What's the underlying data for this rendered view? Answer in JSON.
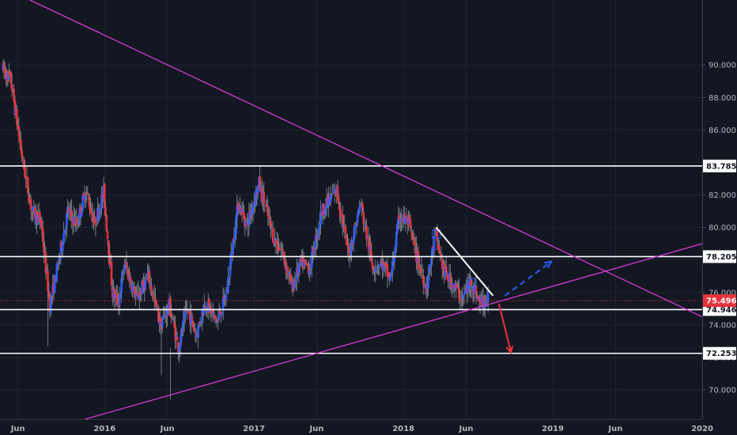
{
  "chart_data": {
    "type": "candlestick",
    "y_ticks": [
      "90.000",
      "88.000",
      "86.000",
      "84.000",
      "82.000",
      "80.000",
      "78.000",
      "76.000",
      "74.000",
      "72.000",
      "70.000"
    ],
    "x_ticks": [
      {
        "label": "Jun",
        "t": 2015.42
      },
      {
        "label": "2016",
        "t": 2016.0
      },
      {
        "label": "Jun",
        "t": 2016.42
      },
      {
        "label": "2017",
        "t": 2017.0
      },
      {
        "label": "Jun",
        "t": 2017.42
      },
      {
        "label": "2018",
        "t": 2018.0
      },
      {
        "label": "Jun",
        "t": 2018.42
      },
      {
        "label": "2019",
        "t": 2019.0
      },
      {
        "label": "Jun",
        "t": 2019.42
      },
      {
        "label": "2020",
        "t": 2020.0
      }
    ],
    "ylim": [
      68.2,
      94.0
    ],
    "xlim": [
      2015.3,
      2020.0
    ],
    "levels": [
      {
        "value": 83.785,
        "label": "83.785",
        "color": "#ffffff"
      },
      {
        "value": 78.205,
        "label": "78.205",
        "color": "#ffffff"
      },
      {
        "value": 74.946,
        "label": "74.946",
        "color": "#ffffff"
      },
      {
        "value": 72.253,
        "label": "72.253",
        "color": "#ffffff"
      }
    ],
    "last_price": {
      "value": 75.496,
      "label": "75.496",
      "color": "#e8323c"
    },
    "trendlines": [
      {
        "color": "#d63bd6",
        "from": {
          "t": 2015.5,
          "y": 94.0
        },
        "to": {
          "t": 2020.0,
          "y": 74.5
        }
      },
      {
        "color": "#d63bd6",
        "from": {
          "t": 2015.87,
          "y": 68.2
        },
        "to": {
          "t": 2020.0,
          "y": 79.0
        }
      },
      {
        "color": "#ffffff",
        "from": {
          "t": 2018.22,
          "y": 80.0
        },
        "to": {
          "t": 2018.6,
          "y": 75.8
        }
      }
    ],
    "arrows": [
      {
        "color": "#e8323c",
        "dashed": false,
        "from": {
          "t": 2018.64,
          "y": 75.3
        },
        "to": {
          "t": 2018.72,
          "y": 72.3
        }
      },
      {
        "color": "#2962ff",
        "dashed": true,
        "from": {
          "t": 2018.68,
          "y": 75.8
        },
        "to": {
          "t": 2018.99,
          "y": 77.9
        }
      }
    ],
    "anchors": [
      {
        "t": 2015.32,
        "y": 89.8
      },
      {
        "t": 2015.38,
        "y": 89.0
      },
      {
        "t": 2015.46,
        "y": 84.0
      },
      {
        "t": 2015.52,
        "y": 81.0
      },
      {
        "t": 2015.58,
        "y": 80.4
      },
      {
        "t": 2015.64,
        "y": 75.2
      },
      {
        "t": 2015.68,
        "y": 77.0
      },
      {
        "t": 2015.76,
        "y": 81.0
      },
      {
        "t": 2015.82,
        "y": 80.2
      },
      {
        "t": 2015.88,
        "y": 82.3
      },
      {
        "t": 2015.94,
        "y": 80.2
      },
      {
        "t": 2016.0,
        "y": 82.2
      },
      {
        "t": 2016.06,
        "y": 76.0
      },
      {
        "t": 2016.1,
        "y": 75.4
      },
      {
        "t": 2016.14,
        "y": 77.8
      },
      {
        "t": 2016.22,
        "y": 75.6
      },
      {
        "t": 2016.3,
        "y": 77.0
      },
      {
        "t": 2016.38,
        "y": 74.0
      },
      {
        "t": 2016.44,
        "y": 75.2
      },
      {
        "t": 2016.5,
        "y": 72.6
      },
      {
        "t": 2016.56,
        "y": 75.0
      },
      {
        "t": 2016.62,
        "y": 73.4
      },
      {
        "t": 2016.68,
        "y": 75.4
      },
      {
        "t": 2016.76,
        "y": 74.2
      },
      {
        "t": 2016.82,
        "y": 75.8
      },
      {
        "t": 2016.9,
        "y": 81.5
      },
      {
        "t": 2016.96,
        "y": 80.2
      },
      {
        "t": 2017.04,
        "y": 82.7
      },
      {
        "t": 2017.14,
        "y": 79.3
      },
      {
        "t": 2017.2,
        "y": 78.4
      },
      {
        "t": 2017.26,
        "y": 76.3
      },
      {
        "t": 2017.32,
        "y": 77.8
      },
      {
        "t": 2017.38,
        "y": 77.5
      },
      {
        "t": 2017.46,
        "y": 81.0
      },
      {
        "t": 2017.56,
        "y": 82.3
      },
      {
        "t": 2017.64,
        "y": 78.3
      },
      {
        "t": 2017.72,
        "y": 81.5
      },
      {
        "t": 2017.8,
        "y": 77.6
      },
      {
        "t": 2017.86,
        "y": 77.8
      },
      {
        "t": 2017.92,
        "y": 76.8
      },
      {
        "t": 2017.98,
        "y": 80.7
      },
      {
        "t": 2018.04,
        "y": 80.3
      },
      {
        "t": 2018.1,
        "y": 78.0
      },
      {
        "t": 2018.16,
        "y": 76.3
      },
      {
        "t": 2018.22,
        "y": 79.6
      },
      {
        "t": 2018.28,
        "y": 77.2
      },
      {
        "t": 2018.34,
        "y": 76.5
      },
      {
        "t": 2018.4,
        "y": 75.6
      },
      {
        "t": 2018.46,
        "y": 76.7
      },
      {
        "t": 2018.52,
        "y": 75.3
      },
      {
        "t": 2018.57,
        "y": 75.6
      }
    ]
  }
}
